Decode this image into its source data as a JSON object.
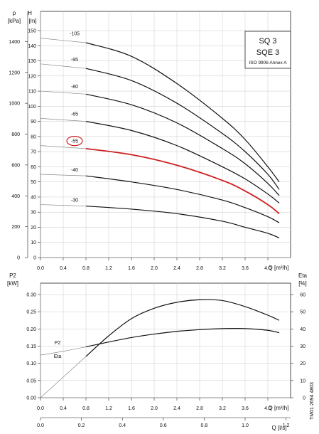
{
  "chart_data": [
    {
      "type": "line",
      "title": "SQ 3",
      "subtitle": "SQE 3",
      "standard": "ISO 9906 Annex A",
      "xlabel": "Q [m³/h]",
      "ylabel_left_name": "p",
      "ylabel_left_unit": "[kPa]",
      "ylabel_right_name": "H",
      "ylabel_right_unit": "[m]",
      "xlim": [
        0,
        4.4
      ],
      "ylim_H": [
        0,
        150
      ],
      "x_ticks": [
        "0.0",
        "0.4",
        "0.8",
        "1.2",
        "1.6",
        "2.0",
        "2.4",
        "2.8",
        "3.2",
        "3.6",
        "4.0"
      ],
      "H_ticks": [
        "0",
        "10",
        "20",
        "30",
        "40",
        "50",
        "60",
        "70",
        "80",
        "90",
        "100",
        "110",
        "120",
        "130",
        "140",
        "150"
      ],
      "p_ticks": [
        "0",
        "200",
        "400",
        "600",
        "800",
        "1000",
        "1200",
        "1400"
      ],
      "grid": true,
      "highlight_color": "#cc1f1f",
      "series": [
        {
          "name": "-105",
          "label": "-105",
          "highlight": false,
          "x": [
            0,
            0.8,
            1.6,
            2.4,
            3.2,
            3.6,
            4.0,
            4.2
          ],
          "y": [
            145,
            142,
            133,
            115,
            92,
            78,
            60,
            50
          ]
        },
        {
          "name": "-95",
          "label": "-95",
          "highlight": false,
          "x": [
            0,
            0.8,
            1.6,
            2.4,
            3.2,
            3.6,
            4.0,
            4.2
          ],
          "y": [
            128,
            125,
            117,
            102,
            82,
            70,
            55,
            45
          ]
        },
        {
          "name": "-80",
          "label": "-80",
          "highlight": false,
          "x": [
            0,
            0.8,
            1.6,
            2.4,
            3.2,
            3.6,
            4.0,
            4.2
          ],
          "y": [
            110,
            108,
            101,
            89,
            72,
            62,
            49,
            41
          ]
        },
        {
          "name": "-65",
          "label": "-65",
          "highlight": false,
          "x": [
            0,
            0.8,
            1.6,
            2.4,
            3.2,
            3.6,
            4.0,
            4.2
          ],
          "y": [
            92,
            90,
            84,
            74,
            60,
            52,
            42,
            36
          ]
        },
        {
          "name": "-55",
          "label": "-55",
          "highlight": true,
          "x": [
            0,
            0.8,
            1.6,
            2.4,
            3.2,
            3.6,
            4.0,
            4.2
          ],
          "y": [
            74,
            72,
            68,
            61,
            51,
            44,
            35,
            29
          ]
        },
        {
          "name": "-40",
          "label": "-40",
          "highlight": false,
          "x": [
            0,
            0.8,
            1.6,
            2.4,
            3.2,
            3.6,
            4.0,
            4.2
          ],
          "y": [
            55,
            54,
            50,
            45,
            38,
            33,
            27,
            23
          ]
        },
        {
          "name": "-30",
          "label": "-30",
          "highlight": false,
          "x": [
            0,
            0.8,
            1.6,
            2.4,
            3.2,
            3.6,
            4.0,
            4.2
          ],
          "y": [
            35,
            34,
            32,
            29,
            24,
            20,
            16,
            13
          ]
        }
      ]
    },
    {
      "type": "line",
      "xlabel": "Q [m³/h]",
      "xlabel2": "Q [l/s]",
      "ylabel_left_name": "P2",
      "ylabel_left_unit": "[kW]",
      "ylabel_right_name": "Eta",
      "ylabel_right_unit": "[%]",
      "xlim": [
        0,
        4.4
      ],
      "ylim_P2": [
        0,
        0.35
      ],
      "ylim_Eta": [
        0,
        70
      ],
      "x_ticks": [
        "0.0",
        "0.4",
        "0.8",
        "1.2",
        "1.6",
        "2.0",
        "2.4",
        "2.8",
        "3.2",
        "3.6",
        "4.0"
      ],
      "x2_ticks": [
        "0.0",
        "0.2",
        "0.4",
        "0.6",
        "0.8",
        "1.0",
        "1.2"
      ],
      "P2_ticks": [
        "0.00",
        "0.05",
        "0.10",
        "0.15",
        "0.20",
        "0.25",
        "0.30"
      ],
      "Eta_ticks": [
        "0",
        "10",
        "20",
        "30",
        "40",
        "50",
        "60"
      ],
      "grid": true,
      "series": [
        {
          "name": "P2",
          "label": "P2",
          "axis": "P2",
          "x": [
            0,
            0.4,
            0.8,
            1.2,
            1.6,
            2.0,
            2.4,
            2.8,
            3.2,
            3.6,
            4.0,
            4.2
          ],
          "y": [
            0.124,
            0.135,
            0.148,
            0.162,
            0.175,
            0.185,
            0.193,
            0.198,
            0.201,
            0.201,
            0.196,
            0.189
          ]
        },
        {
          "name": "Eta",
          "label": "Eta",
          "axis": "Eta",
          "x": [
            0,
            0.4,
            0.8,
            1.2,
            1.6,
            2.0,
            2.4,
            2.8,
            3.2,
            3.6,
            4.0,
            4.2
          ],
          "y": [
            0,
            12,
            24,
            36,
            46,
            52,
            55.5,
            57,
            56.5,
            53,
            48,
            45
          ]
        }
      ]
    }
  ],
  "watermark": "TM01 2694 4803"
}
